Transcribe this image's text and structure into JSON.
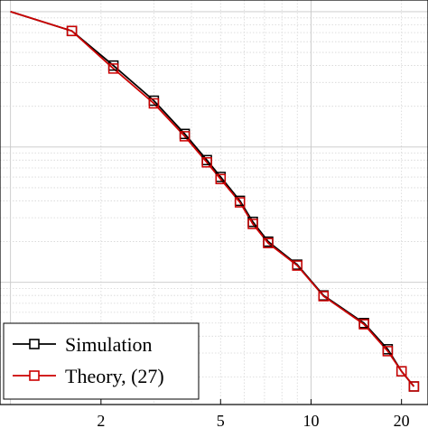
{
  "chart_data": {
    "type": "line",
    "title": "",
    "xlabel": "",
    "ylabel": "",
    "x_scale": "log",
    "y_scale": "log",
    "grid": true,
    "legend_placement": "bottom-left",
    "x_ticks": [
      {
        "value": 2,
        "label": "2"
      },
      {
        "value": 5,
        "label": "5"
      },
      {
        "value": 10,
        "label": "10"
      },
      {
        "value": 20,
        "label": "20"
      }
    ],
    "series": [
      {
        "name": "Simulation",
        "color": "#000000",
        "marker": "square",
        "x": [
          1,
          1.6,
          2.2,
          3.0,
          3.8,
          4.5,
          5.0,
          5.8,
          6.4,
          7.2,
          9.0,
          11.0,
          15.0,
          18.0,
          20.0,
          22.0
        ],
        "y": [
          1.0,
          0.72,
          0.4,
          0.22,
          0.125,
          0.08,
          0.06,
          0.04,
          0.028,
          0.02,
          0.0135,
          0.008,
          0.005,
          0.0032,
          0.0022,
          0.0017
        ]
      },
      {
        "name": "Theory, (27)",
        "color": "#cc0000",
        "marker": "square",
        "x": [
          1,
          1.6,
          2.2,
          3.0,
          3.8,
          4.5,
          5.0,
          5.8,
          6.4,
          7.2,
          9.0,
          11.0,
          15.0,
          18.0,
          20.0,
          22.0
        ],
        "y": [
          1.0,
          0.72,
          0.38,
          0.21,
          0.12,
          0.077,
          0.058,
          0.039,
          0.027,
          0.0195,
          0.0133,
          0.0079,
          0.0049,
          0.0031,
          0.0022,
          0.0017
        ]
      }
    ],
    "legend": [
      "Simulation",
      "Theory, (27)"
    ]
  }
}
